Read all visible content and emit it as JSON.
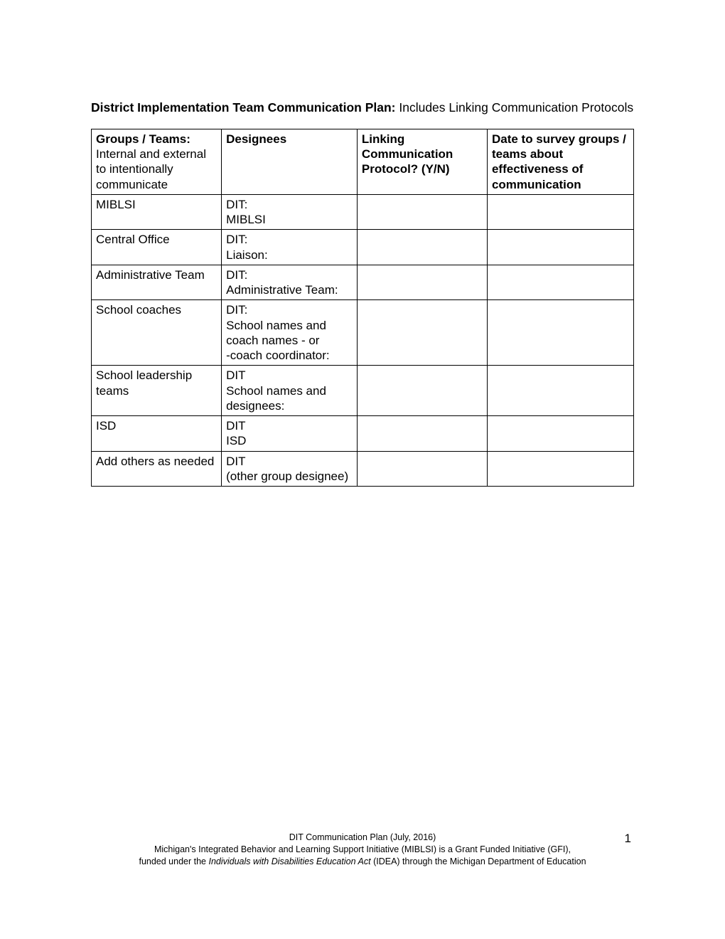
{
  "title": {
    "bold": "District Implementation Team Communication Plan: ",
    "rest": "Includes Linking Communication Protocols"
  },
  "table": {
    "headers": {
      "col1_bold": "Groups / Teams:",
      "col1_rest": "Internal and external to intentionally communicate",
      "col2": "Designees",
      "col3": "Linking Communication Protocol? (Y/N)",
      "col4": "Date to survey groups / teams about effectiveness of communication"
    },
    "rows": [
      {
        "group": "MIBLSI",
        "designees": "DIT:\nMIBLSI",
        "protocol": "",
        "date": ""
      },
      {
        "group": "Central Office",
        "designees": "DIT:\nLiaison:",
        "protocol": "",
        "date": ""
      },
      {
        "group": "Administrative Team",
        "designees": "DIT:\nAdministrative Team:",
        "protocol": "",
        "date": ""
      },
      {
        "group": "School coaches",
        "designees": "DIT:\nSchool names and coach names - or\n-coach coordinator:",
        "protocol": "",
        "date": ""
      },
      {
        "group": "School leadership teams",
        "designees": "DIT\nSchool names and designees:",
        "protocol": "",
        "date": ""
      },
      {
        "group": "ISD",
        "designees": "DIT\nISD",
        "protocol": "",
        "date": ""
      },
      {
        "group": "Add others as needed",
        "designees": "DIT\n(other group designee)",
        "protocol": "",
        "date": ""
      }
    ]
  },
  "footer": {
    "line1": "DIT Communication Plan (July, 2016)",
    "line2_a": "Michigan's Integrated Behavior and Learning Support Initiative (MIBLSI) is a Grant Funded Initiative (GFI),",
    "line3_a": "funded under the ",
    "line3_italic": "Individuals with Disabilities Education Act",
    "line3_b": " (IDEA) through the Michigan Department of Education"
  },
  "page_number": "1"
}
